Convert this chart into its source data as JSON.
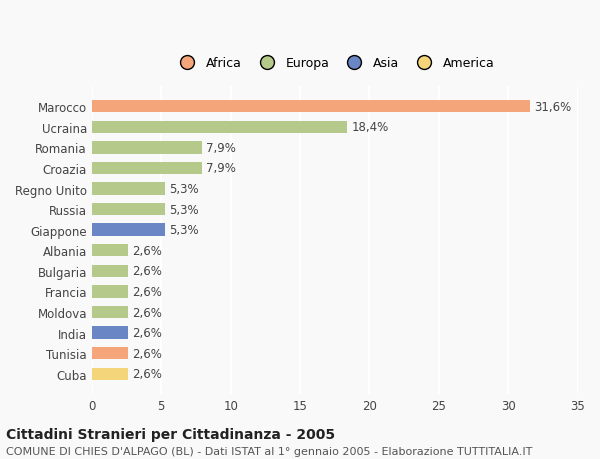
{
  "countries": [
    "Marocco",
    "Ucraina",
    "Romania",
    "Croazia",
    "Regno Unito",
    "Russia",
    "Giappone",
    "Albania",
    "Bulgaria",
    "Francia",
    "Moldova",
    "India",
    "Tunisia",
    "Cuba"
  ],
  "values": [
    31.6,
    18.4,
    7.9,
    7.9,
    5.3,
    5.3,
    5.3,
    2.6,
    2.6,
    2.6,
    2.6,
    2.6,
    2.6,
    2.6
  ],
  "labels": [
    "31,6%",
    "18,4%",
    "7,9%",
    "7,9%",
    "5,3%",
    "5,3%",
    "5,3%",
    "2,6%",
    "2,6%",
    "2,6%",
    "2,6%",
    "2,6%",
    "2,6%",
    "2,6%"
  ],
  "continents": [
    "Africa",
    "Europa",
    "Europa",
    "Europa",
    "Europa",
    "Europa",
    "Asia",
    "Europa",
    "Europa",
    "Europa",
    "Europa",
    "Asia",
    "Africa",
    "America"
  ],
  "colors": {
    "Africa": "#F4A57A",
    "Europa": "#B5C98A",
    "Asia": "#6B86C4",
    "America": "#F5D57A"
  },
  "legend_order": [
    "Africa",
    "Europa",
    "Asia",
    "America"
  ],
  "title_bold": "Cittadini Stranieri per Cittadinanza - 2005",
  "subtitle": "COMUNE DI CHIES D'ALPAGO (BL) - Dati ISTAT al 1° gennaio 2005 - Elaborazione TUTTITALIA.IT",
  "xlim": [
    0,
    35
  ],
  "xticks": [
    0,
    5,
    10,
    15,
    20,
    25,
    30,
    35
  ],
  "background_color": "#f9f9f9",
  "grid_color": "#ffffff",
  "bar_height": 0.6,
  "label_fontsize": 8.5,
  "tick_fontsize": 8.5,
  "title_fontsize": 10,
  "subtitle_fontsize": 8
}
